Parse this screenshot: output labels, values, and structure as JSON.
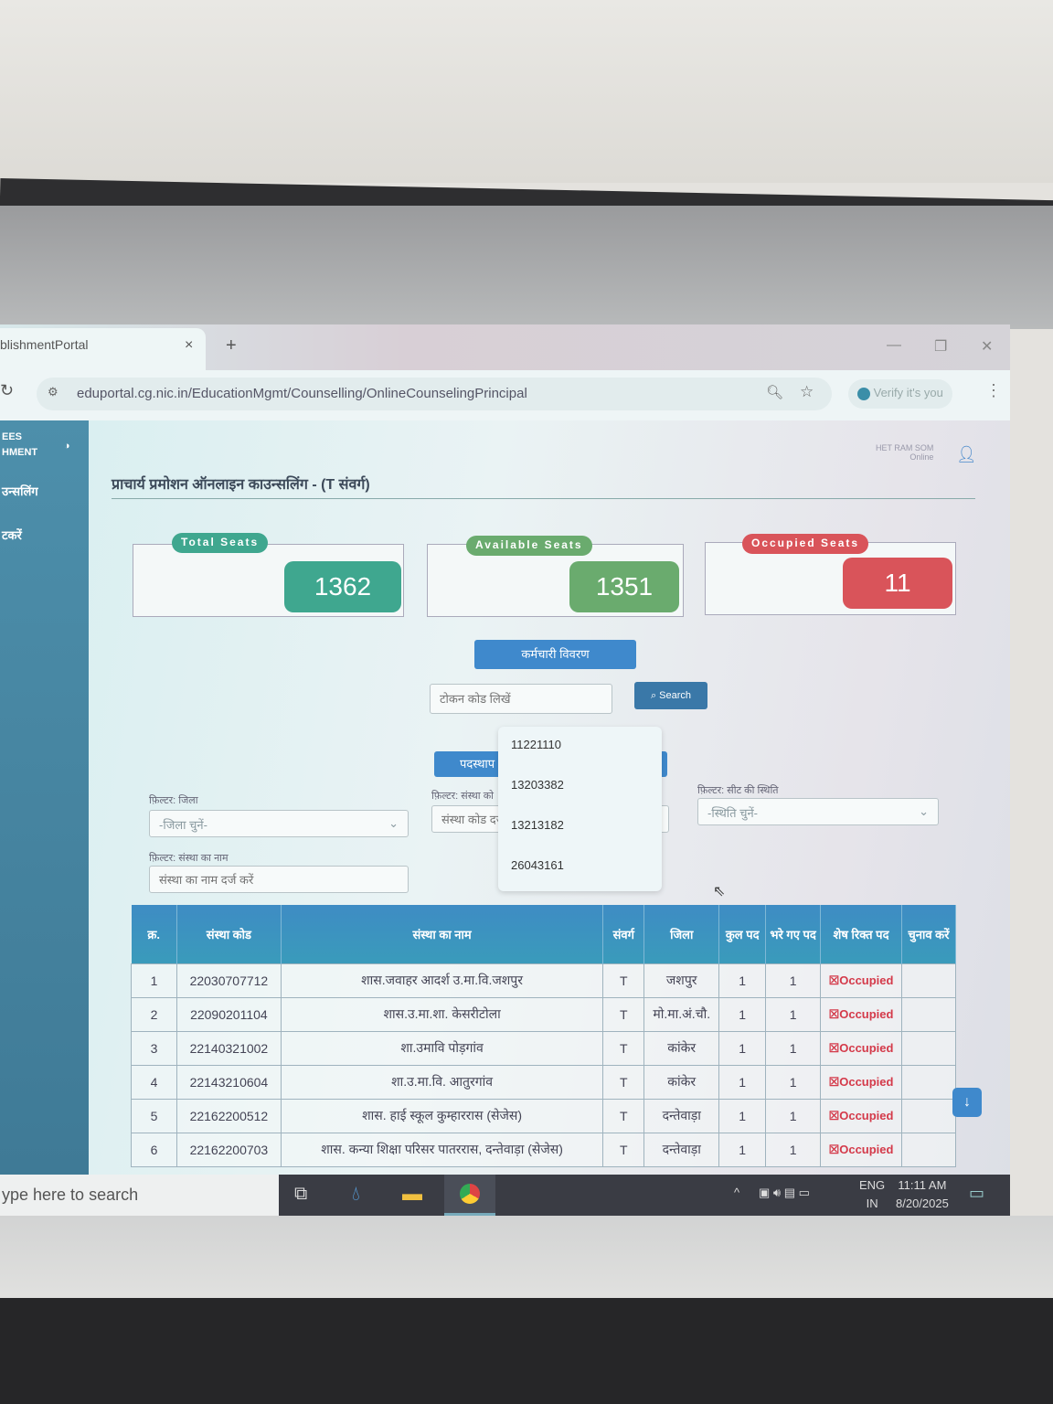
{
  "browser": {
    "tab_title": "blishmentPortal",
    "tab_close": "×",
    "new_tab": "+",
    "url": "eduportal.cg.nic.in/EducationMgmt/Counselling/OnlineCounselingPrincipal",
    "verify_label": "Verify it's you",
    "window_controls": [
      "—",
      "❐",
      "✕"
    ]
  },
  "sidebar": {
    "brand_line1": "EES",
    "brand_line2": "HMENT",
    "items": [
      "उन्सलिंग",
      "टकरें"
    ]
  },
  "header": {
    "title": "प्राचार्य प्रमोशन ऑनलाइन काउन्सलिंग - (T संवर्ग)",
    "user_name": "HET RAM SOM",
    "user_status": "Online"
  },
  "stats": [
    {
      "label": "Total Seats",
      "value": "1362",
      "color": "#3fa78f"
    },
    {
      "label": "Available Seats",
      "value": "1351",
      "color": "#6aab6e"
    },
    {
      "label": "Occupied Seats",
      "value": "11",
      "color": "#d9545a"
    }
  ],
  "employee_button": "कर्मचारी विवरण",
  "search": {
    "placeholder": "टोकन कोड लिखें",
    "button": "Search"
  },
  "dropdown_options": [
    "11221110",
    "13203382",
    "13213182",
    "26043161"
  ],
  "posting_button": "पदस्थाप",
  "filters": {
    "district_label": "फ़िल्टर: जिला",
    "district_value": "-जिला चुनें-",
    "inst_code_label": "फ़िल्टर: संस्था को",
    "inst_code_placeholder": "संस्था कोड दर्ज",
    "status_label": "फ़िल्टर: सीट की स्थिति",
    "status_value": "-स्थिति चुनें-",
    "inst_name_label": "फ़िल्टर: संस्था का नाम",
    "inst_name_placeholder": "संस्था का नाम दर्ज करें"
  },
  "table": {
    "headers": [
      "क्र.",
      "संस्था कोड",
      "संस्था का नाम",
      "संवर्ग",
      "जिला",
      "कुल पद",
      "भरे गए पद",
      "शेष रिक्त पद",
      "चुनाव करें"
    ],
    "rows": [
      [
        "1",
        "22030707712",
        "शास.जवाहर आदर्श उ.मा.वि.जशपुर",
        "T",
        "जशपुर",
        "1",
        "1",
        "Occupied",
        ""
      ],
      [
        "2",
        "22090201104",
        "शास.उ.मा.शा. केसरीटोला",
        "T",
        "मो.मा.अं.चौ.",
        "1",
        "1",
        "Occupied",
        ""
      ],
      [
        "3",
        "22140321002",
        "शा.उमावि पोड़गांव",
        "T",
        "कांकेर",
        "1",
        "1",
        "Occupied",
        ""
      ],
      [
        "4",
        "22143210604",
        "शा.उ.मा.वि. आतुरगांव",
        "T",
        "कांकेर",
        "1",
        "1",
        "Occupied",
        ""
      ],
      [
        "5",
        "22162200512",
        "शास. हाई स्कूल कुम्हाररास (सेजेस)",
        "T",
        "दन्तेवाड़ा",
        "1",
        "1",
        "Occupied",
        ""
      ],
      [
        "6",
        "22162200703",
        "शास. कन्या शिक्षा परिसर पातररास, दन्तेवाड़ा (सेजेस)",
        "T",
        "दन्तेवाड़ा",
        "1",
        "1",
        "Occupied",
        ""
      ]
    ]
  },
  "taskbar": {
    "search_placeholder": "ype here to search",
    "lang": "ENG",
    "region": "IN",
    "time": "11:11 AM",
    "date": "8/20/2025"
  }
}
